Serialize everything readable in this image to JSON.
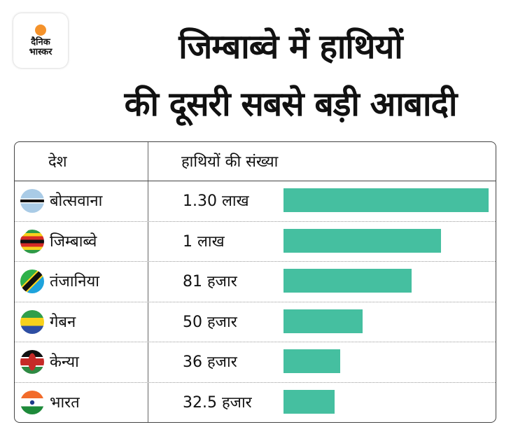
{
  "logo": {
    "line1": "दैनिक",
    "line2": "भास्कर"
  },
  "title": {
    "line1": "जिम्बाब्वे में हाथियों",
    "line2": "की दूसरी सबसे बड़ी आबादी"
  },
  "table": {
    "col_country": "देश",
    "col_count": "हाथियों की संख्या"
  },
  "colors": {
    "bar": "#45bfa0"
  },
  "chart_data": {
    "type": "bar",
    "orientation": "horizontal",
    "title": "जिम्बाब्वे में हाथियों की दूसरी सबसे बड़ी आबादी",
    "categories": [
      "बोत्सवाना",
      "जिम्बाब्वे",
      "तंजानिया",
      "गेबन",
      "केन्या",
      "भारत"
    ],
    "values": [
      130000,
      100000,
      81000,
      50000,
      36000,
      32500
    ],
    "labels": [
      "1.30 लाख",
      "1 लाख",
      "81 हजार",
      "50 हजार",
      "36 हजार",
      "32.5 हजार"
    ],
    "flags": [
      "botswana-flag-icon",
      "zimbabwe-flag-icon",
      "tanzania-flag-icon",
      "gabon-flag-icon",
      "kenya-flag-icon",
      "india-flag-icon"
    ]
  }
}
